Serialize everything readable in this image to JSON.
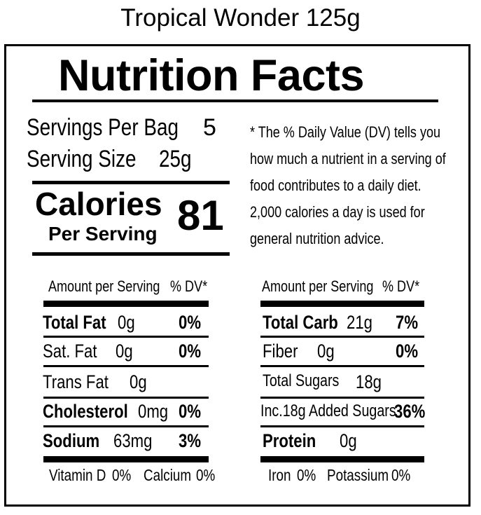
{
  "product_name": "Tropical Wonder 125g",
  "title": "Nutrition Facts",
  "servings": {
    "per_bag_label": "Servings Per Bag",
    "per_bag_value": "5",
    "size_label": "Serving Size",
    "size_value": "25g"
  },
  "calories": {
    "label": "Calories",
    "sub_label": "Per Serving",
    "value": "81"
  },
  "dv_note": [
    "* The % Daily Value (DV) tells you",
    "how much a nutrient in a serving of",
    "food contributes to a daily diet.",
    "2,000 calories a day is used for",
    "general nutrition advice."
  ],
  "left_table": {
    "header_amount": "Amount per Serving",
    "header_dv": "% DV*",
    "rows": [
      {
        "name": "Total Fat",
        "amount": "0g",
        "dv": "0%"
      },
      {
        "name": "Sat. Fat",
        "amount": "0g",
        "dv": "0%"
      },
      {
        "name": "Trans Fat",
        "amount": "0g",
        "dv": ""
      },
      {
        "name": "Cholesterol",
        "amount": "0mg",
        "dv": "0%"
      },
      {
        "name": "Sodium",
        "amount": "63mg",
        "dv": "3%"
      }
    ]
  },
  "right_table": {
    "header_amount": "Amount per Serving",
    "header_dv": "% DV*",
    "rows": [
      {
        "name": "Total Carb",
        "amount": "21g",
        "dv": "7%"
      },
      {
        "name": "Fiber",
        "amount": "0g",
        "dv": "0%"
      },
      {
        "name": "Total Sugars",
        "amount": "18g",
        "dv": ""
      },
      {
        "name": "Inc.18g Added Sugars",
        "amount": "",
        "dv": "36%"
      },
      {
        "name": "Protein",
        "amount": "0g",
        "dv": ""
      }
    ]
  },
  "footer": {
    "vitamin_d": "Vitamin D",
    "vitamin_d_dv": "0%",
    "calcium": "Calcium",
    "calcium_dv": "0%",
    "iron": "Iron",
    "iron_dv": "0%",
    "potassium": "Potassium",
    "potassium_dv": "0%"
  }
}
